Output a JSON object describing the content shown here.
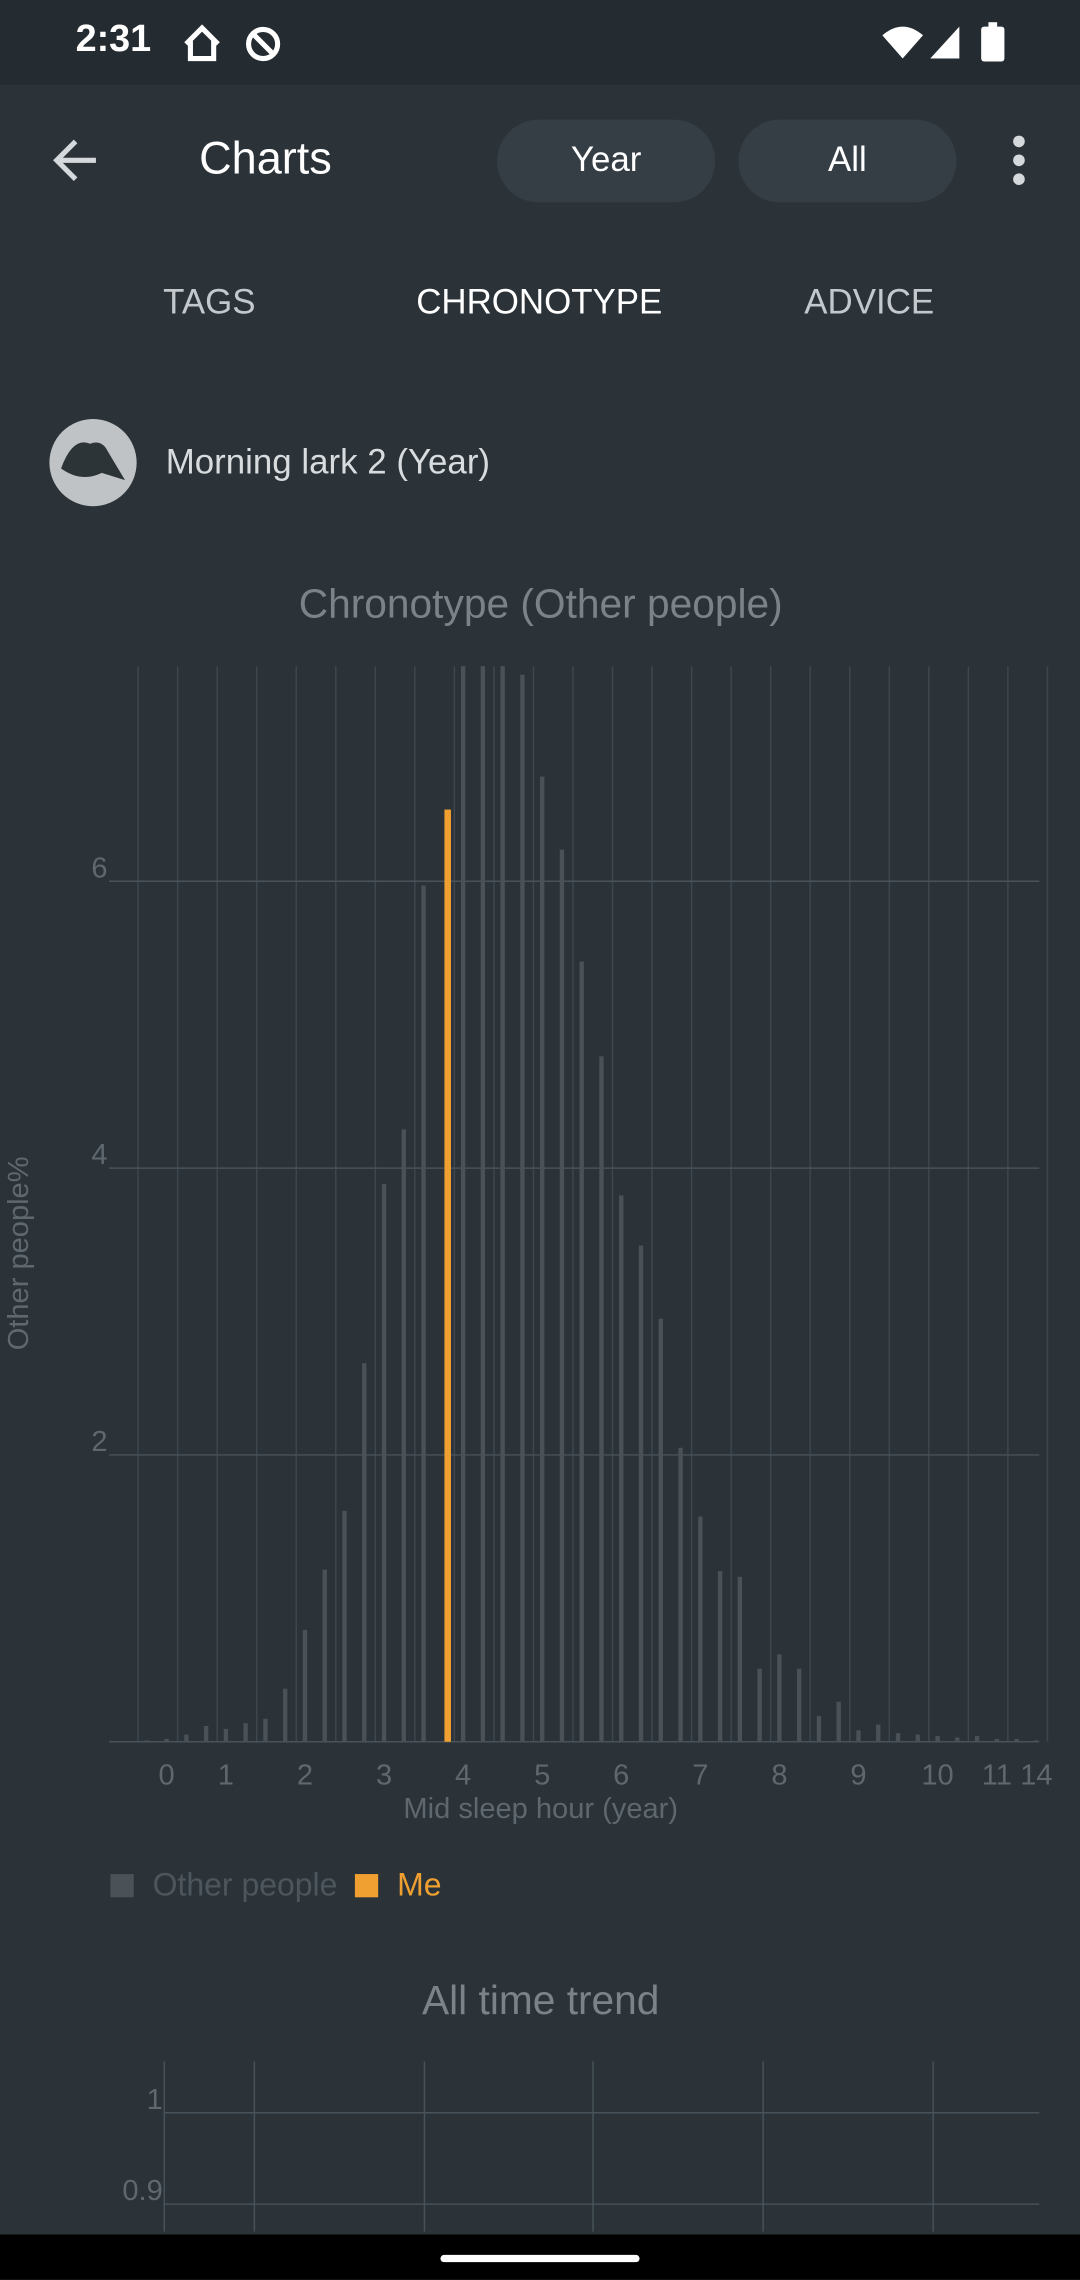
{
  "status_bar": {
    "time": "2:31"
  },
  "toolbar": {
    "title": "Charts",
    "filters": [
      "Year",
      "All"
    ]
  },
  "tabs": [
    {
      "label": "TAGS"
    },
    {
      "label": "CHRONOTYPE",
      "selected": true
    },
    {
      "label": "ADVICE"
    }
  ],
  "chronotype": {
    "label": "Morning lark 2 (Year)"
  },
  "chart_data": [
    {
      "type": "bar",
      "title": "Chronotype (Other people)",
      "x_label": "Mid sleep hour (year)",
      "y_label": "Other people%",
      "categories": [
        null,
        "0",
        null,
        null,
        "1",
        null,
        null,
        null,
        "2",
        null,
        null,
        null,
        "3",
        null,
        null,
        null,
        "4",
        null,
        null,
        null,
        "5",
        null,
        null,
        null,
        "6",
        null,
        null,
        null,
        "7",
        null,
        null,
        null,
        "8",
        null,
        null,
        null,
        "9",
        null,
        null,
        null,
        "10",
        null,
        null,
        "11",
        null,
        "14"
      ],
      "series": [
        {
          "name": "Other people",
          "color": "#4a5257",
          "values": [
            0.01,
            0.02,
            0.05,
            0.11,
            0.09,
            0.13,
            0.16,
            0.37,
            0.78,
            1.2,
            1.61,
            2.64,
            3.89,
            4.27,
            5.97,
            null,
            7.5,
            7.5,
            7.5,
            7.44,
            6.73,
            6.22,
            5.44,
            4.78,
            3.81,
            3.46,
            2.95,
            2.05,
            1.57,
            1.19,
            1.15,
            0.51,
            0.61,
            0.51,
            0.18,
            0.28,
            0.08,
            0.12,
            0.06,
            0.05,
            0.04,
            0.03,
            0.04,
            0.02,
            0.02,
            0.01
          ]
        },
        {
          "name": "Me",
          "color": "#f0a030",
          "values": [
            null,
            null,
            null,
            null,
            null,
            null,
            null,
            null,
            null,
            null,
            null,
            null,
            null,
            null,
            null,
            6.5,
            null,
            null,
            null,
            null,
            null,
            null,
            null,
            null,
            null,
            null,
            null,
            null,
            null,
            null,
            null,
            null,
            null,
            null,
            null,
            null,
            null,
            null,
            null,
            null,
            null,
            null,
            null,
            null,
            null,
            null
          ]
        }
      ],
      "ylim": [
        0,
        7.5
      ],
      "yticks": [
        2,
        4,
        6
      ],
      "grid": true
    },
    {
      "type": "line",
      "title": "All time trend",
      "ylim": [
        0.87,
        1.056
      ],
      "yticks": [
        0.9,
        1
      ],
      "grid": true
    }
  ]
}
